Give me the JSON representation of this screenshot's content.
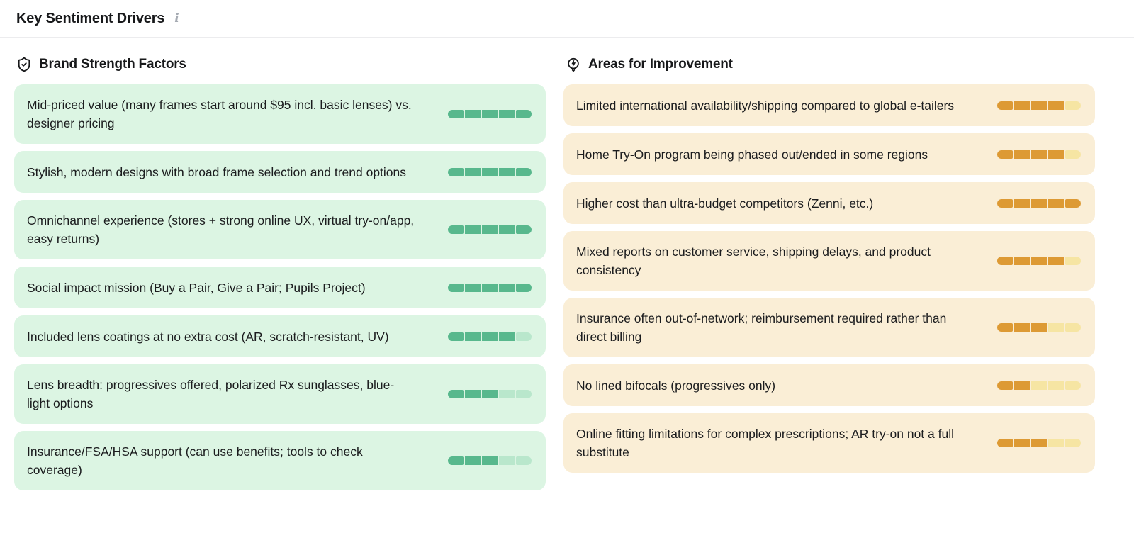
{
  "panel": {
    "title": "Key Sentiment Drivers",
    "info_icon": "i"
  },
  "colors": {
    "strength_card_bg": "#dcf5e3",
    "strength_fill": "#58b88d",
    "strength_empty": "#b9e7cc",
    "improvement_card_bg": "#faeed6",
    "improvement_fill": "#dd9a34",
    "improvement_empty": "#f6e5a3"
  },
  "columns": [
    {
      "id": "strengths",
      "icon": "shield-check-icon",
      "title": "Brand Strength Factors",
      "theme": "green",
      "items": [
        {
          "text": "Mid-priced value (many frames start around $95 incl. basic lenses) vs. designer pricing",
          "score": 5,
          "max": 5
        },
        {
          "text": "Stylish, modern designs with broad frame selection and trend options",
          "score": 5,
          "max": 5
        },
        {
          "text": "Omnichannel experience (stores + strong online UX, virtual try-on/app, easy returns)",
          "score": 5,
          "max": 5
        },
        {
          "text": "Social impact mission (Buy a Pair, Give a Pair; Pupils Project)",
          "score": 5,
          "max": 5
        },
        {
          "text": "Included lens coatings at no extra cost (AR, scratch-resistant, UV)",
          "score": 4,
          "max": 5
        },
        {
          "text": "Lens breadth: progressives offered, polarized Rx sunglasses, blue-light options",
          "score": 3,
          "max": 5
        },
        {
          "text": "Insurance/FSA/HSA support (can use benefits; tools to check coverage)",
          "score": 3,
          "max": 5
        }
      ]
    },
    {
      "id": "improvements",
      "icon": "lightbulb-bolt-icon",
      "title": "Areas for Improvement",
      "theme": "orange",
      "items": [
        {
          "text": "Limited international availability/shipping compared to global e-tailers",
          "score": 4,
          "max": 5
        },
        {
          "text": "Home Try-On program being phased out/ended in some regions",
          "score": 4,
          "max": 5
        },
        {
          "text": "Higher cost than ultra-budget competitors (Zenni, etc.)",
          "score": 5,
          "max": 5
        },
        {
          "text": "Mixed reports on customer service, shipping delays, and product consistency",
          "score": 4,
          "max": 5
        },
        {
          "text": "Insurance often out-of-network; reimbursement required rather than direct billing",
          "score": 3,
          "max": 5
        },
        {
          "text": "No lined bifocals (progressives only)",
          "score": 2,
          "max": 5
        },
        {
          "text": "Online fitting limitations for complex prescriptions; AR try-on not a full substitute",
          "score": 3,
          "max": 5
        }
      ]
    }
  ]
}
